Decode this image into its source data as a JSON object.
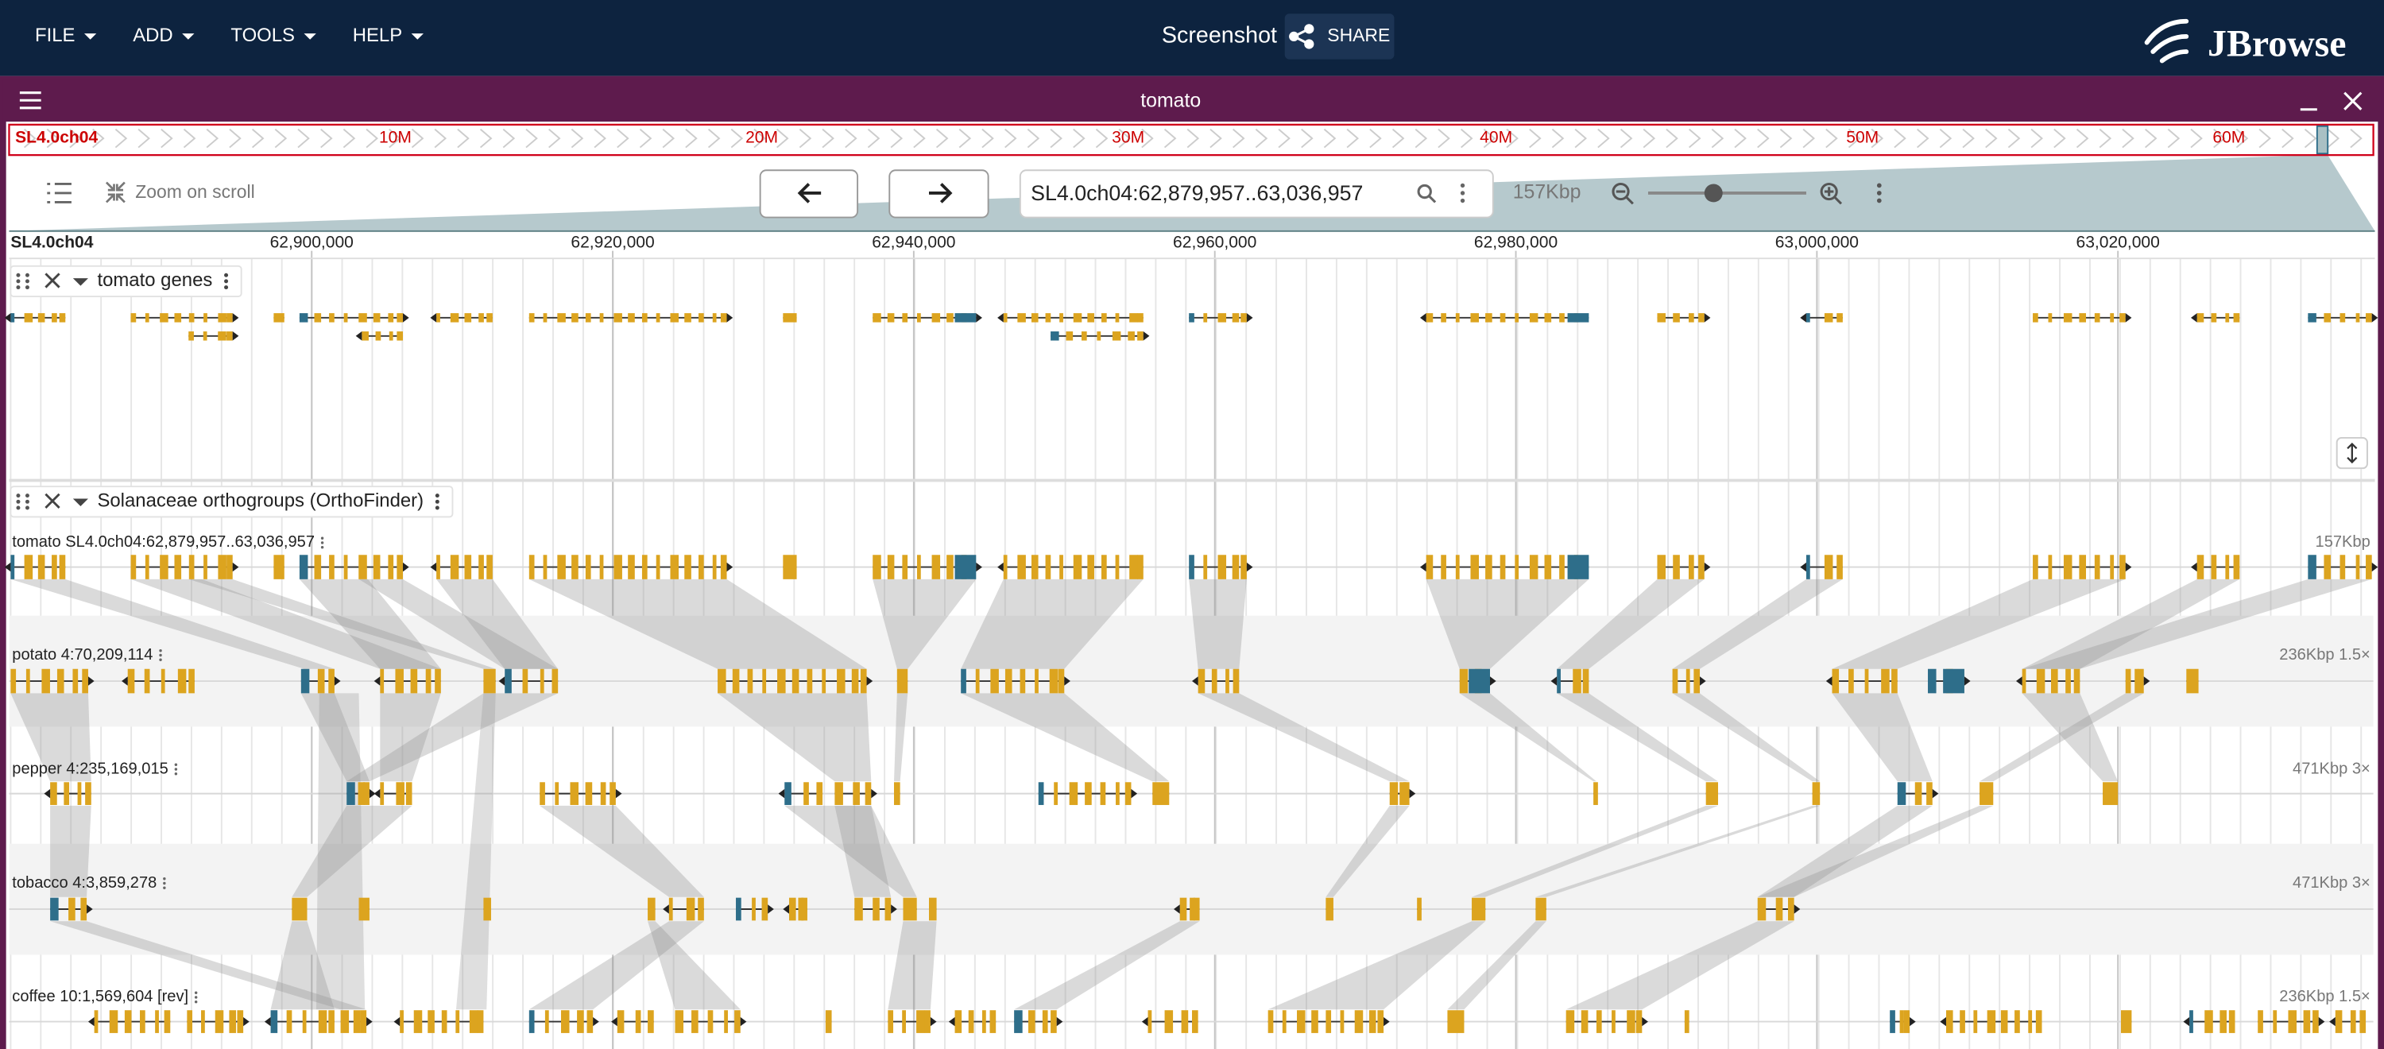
{
  "menu": [
    "FILE",
    "ADD",
    "TOOLS",
    "HELP"
  ],
  "session_title": "Screenshot",
  "share": "SHARE",
  "logo": "JBrowse",
  "view": {
    "name": "tomato",
    "overview": {
      "refname": "SL4.0ch04",
      "labels": [
        "10M",
        "20M",
        "30M",
        "40M",
        "50M",
        "60M"
      ]
    },
    "zoom_toggle": "Zoom on scroll",
    "location": "SL4.0ch04:62,879,957..63,036,957",
    "span": "157Kbp",
    "ruler": {
      "refname": "SL4.0ch04",
      "ticks": [
        "62,900,000",
        "62,920,000",
        "62,940,000",
        "62,960,000",
        "62,980,000",
        "63,000,000",
        "63,020,000"
      ]
    }
  },
  "tracks": [
    {
      "name": "tomato genes"
    },
    {
      "name": "Solanaceae orthogroups (OrthoFinder)",
      "rows": [
        {
          "label": "tomato SL4.0ch04:62,879,957..63,036,957",
          "scale": "157Kbp"
        },
        {
          "label": "potato 4:70,209,114",
          "scale": "236Kbp 1.5×"
        },
        {
          "label": "pepper 4:235,169,015",
          "scale": "471Kbp 3×"
        },
        {
          "label": "tobacco 4:3,859,278",
          "scale": "471Kbp 3×"
        },
        {
          "label": "coffee 10:1,569,604 [rev]",
          "scale": "236Kbp 1.5×"
        }
      ]
    }
  ]
}
